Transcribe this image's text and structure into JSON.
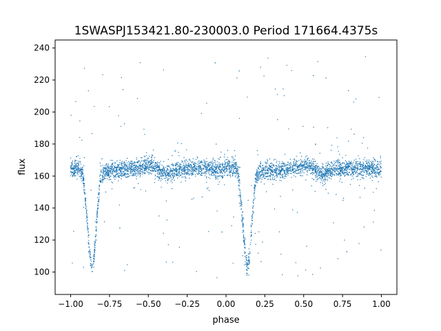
{
  "chart_data": {
    "type": "scatter",
    "title": "1SWASPJ153421.80-230003.0 Period 171664.4375s",
    "xlabel": "phase",
    "ylabel": "flux",
    "xlim": [
      -1.1,
      1.1
    ],
    "ylim": [
      86,
      245
    ],
    "xticks": [
      -1.0,
      -0.75,
      -0.5,
      -0.25,
      0.0,
      0.25,
      0.5,
      0.75,
      1.0
    ],
    "xtick_labels": [
      "−1.00",
      "−0.75",
      "−0.50",
      "−0.25",
      "0.00",
      "0.25",
      "0.50",
      "0.75",
      "1.00"
    ],
    "yticks": [
      100,
      120,
      140,
      160,
      180,
      200,
      220,
      240
    ],
    "ytick_labels": [
      "100",
      "120",
      "140",
      "160",
      "180",
      "200",
      "220",
      "240"
    ],
    "grid": false,
    "point_color": "#1f77b4",
    "light_curve": {
      "description_points": [
        [
          0.0,
          164
        ],
        [
          0.06,
          165
        ],
        [
          0.08,
          160
        ],
        [
          0.1,
          140
        ],
        [
          0.12,
          115
        ],
        [
          0.135,
          103
        ],
        [
          0.15,
          108
        ],
        [
          0.17,
          135
        ],
        [
          0.19,
          158
        ],
        [
          0.22,
          163
        ],
        [
          0.35,
          164
        ],
        [
          0.45,
          165
        ],
        [
          0.52,
          167
        ],
        [
          0.58,
          163
        ],
        [
          0.62,
          161
        ],
        [
          0.68,
          164
        ],
        [
          0.85,
          165
        ],
        [
          1.0,
          164
        ]
      ],
      "baseline": 165,
      "eclipse_minimum": {
        "phase": 0.135,
        "flux": 103
      }
    }
  }
}
